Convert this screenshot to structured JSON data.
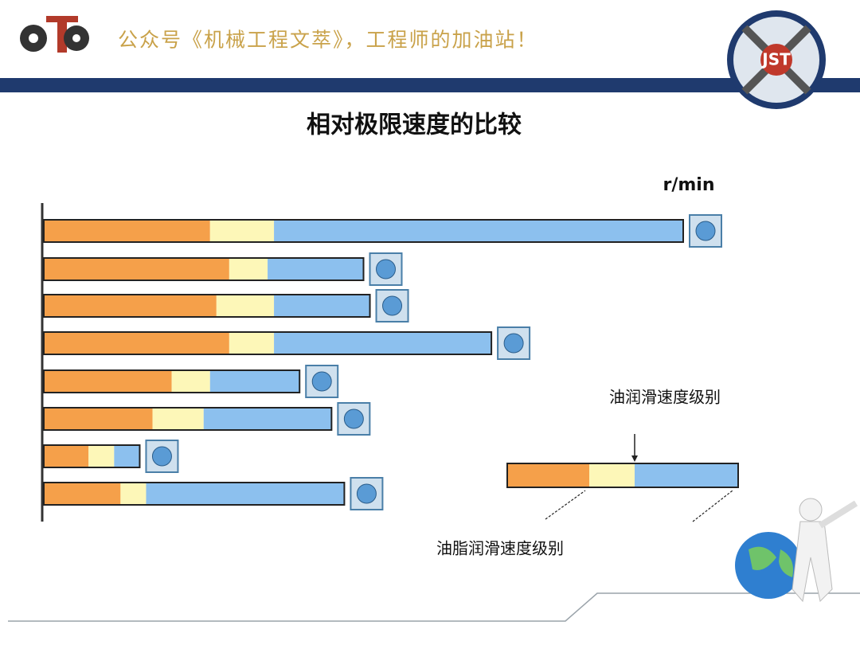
{
  "header": {
    "text": "公众号《机械工程文萃》，工程师的加油站！"
  },
  "chart_data": {
    "type": "bar",
    "orientation": "horizontal",
    "stacked": true,
    "title": "相对极限速度的比较",
    "unit": "r/min",
    "annotations": [
      "油润滑速度级别",
      "油脂润滑速度级别"
    ],
    "categories": [
      null,
      null,
      null,
      null,
      null,
      null,
      null,
      null
    ],
    "xlim": [
      0,
      100
    ],
    "series": [
      {
        "color": "#f5a04a",
        "values": [
          26,
          29,
          27,
          29,
          20,
          17,
          7,
          12
        ]
      },
      {
        "color": "#fdf7b8",
        "values": [
          10,
          6,
          9,
          7,
          6,
          8,
          4,
          4
        ]
      },
      {
        "color": "#8cc0ee",
        "values": [
          64,
          15,
          15,
          34,
          14,
          20,
          4,
          31
        ]
      }
    ]
  }
}
